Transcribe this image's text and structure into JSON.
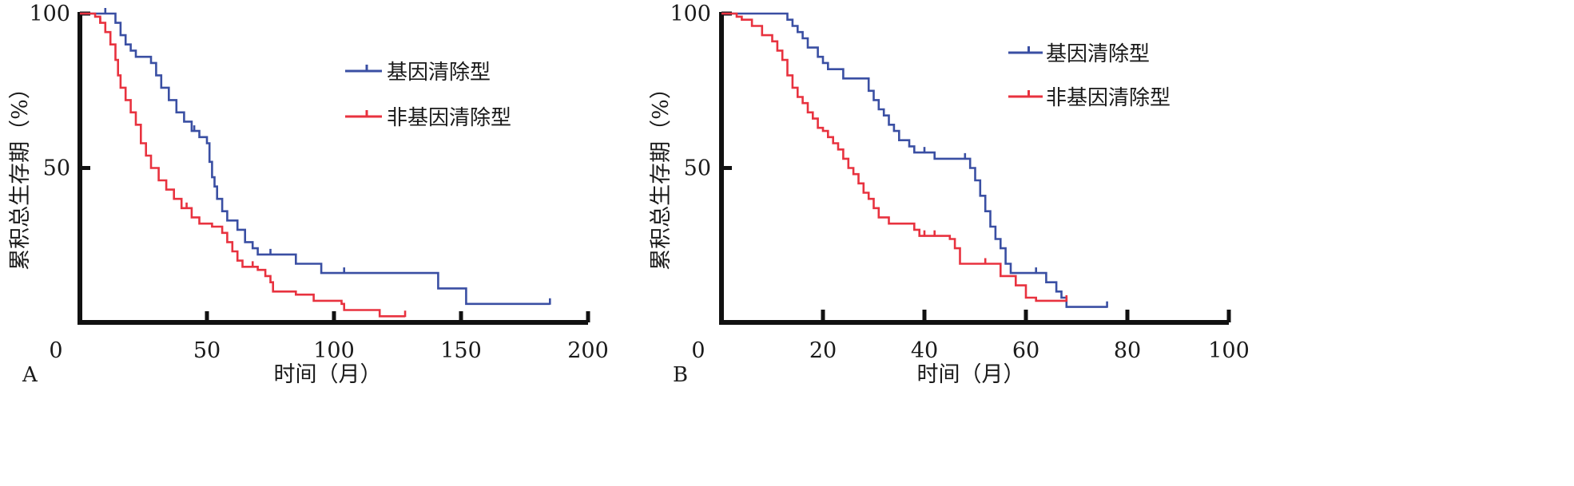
{
  "chart_data": [
    {
      "type": "line",
      "panel_label": "A",
      "xlabel": "时间（月）",
      "ylabel": "累积总生存期（%）",
      "xlim": [
        0,
        200
      ],
      "ylim": [
        0,
        100
      ],
      "xticks": [
        0,
        50,
        100,
        150,
        200
      ],
      "yticks": [
        50,
        100
      ],
      "x_tick_labels": [
        "0",
        "50",
        "100",
        "150",
        "200"
      ],
      "y_tick_labels": [
        "50",
        "100"
      ],
      "grid": false,
      "legend": "top-right",
      "series": [
        {
          "name": "基因清除型",
          "color": "#3a4fa3",
          "points": [
            [
              0,
              100
            ],
            [
              12,
              100
            ],
            [
              14,
              97
            ],
            [
              16,
              93
            ],
            [
              18,
              90
            ],
            [
              20,
              88
            ],
            [
              22,
              86
            ],
            [
              28,
              84
            ],
            [
              30,
              80
            ],
            [
              32,
              76
            ],
            [
              35,
              72
            ],
            [
              38,
              68
            ],
            [
              41,
              65
            ],
            [
              44,
              62
            ],
            [
              47,
              60
            ],
            [
              50,
              58
            ],
            [
              51,
              52
            ],
            [
              52,
              47
            ],
            [
              53,
              44
            ],
            [
              54,
              40
            ],
            [
              56,
              36
            ],
            [
              58,
              33
            ],
            [
              62,
              30
            ],
            [
              65,
              26
            ],
            [
              68,
              24
            ],
            [
              70,
              22
            ],
            [
              85,
              19
            ],
            [
              95,
              16
            ],
            [
              140,
              16
            ],
            [
              141,
              11
            ],
            [
              150,
              11
            ],
            [
              152,
              6
            ],
            [
              185,
              6
            ]
          ],
          "censored_x": [
            10,
            45,
            75,
            104,
            185
          ]
        },
        {
          "name": "非基因清除型",
          "color": "#e8323f",
          "points": [
            [
              0,
              100
            ],
            [
              6,
              99
            ],
            [
              8,
              97
            ],
            [
              10,
              94
            ],
            [
              12,
              90
            ],
            [
              14,
              85
            ],
            [
              15,
              80
            ],
            [
              16,
              76
            ],
            [
              18,
              72
            ],
            [
              20,
              68
            ],
            [
              22,
              64
            ],
            [
              24,
              58
            ],
            [
              26,
              54
            ],
            [
              28,
              50
            ],
            [
              31,
              46
            ],
            [
              34,
              43
            ],
            [
              37,
              40
            ],
            [
              40,
              37
            ],
            [
              44,
              34
            ],
            [
              47,
              32
            ],
            [
              52,
              31
            ],
            [
              56,
              29
            ],
            [
              58,
              26
            ],
            [
              60,
              23
            ],
            [
              62,
              20
            ],
            [
              64,
              18
            ],
            [
              70,
              17
            ],
            [
              73,
              15
            ],
            [
              75,
              13
            ],
            [
              76,
              10
            ],
            [
              85,
              9
            ],
            [
              92,
              7
            ],
            [
              103,
              6
            ],
            [
              104,
              4
            ],
            [
              117,
              4
            ],
            [
              118,
              2
            ],
            [
              128,
              2
            ]
          ],
          "censored_x": [
            8,
            42,
            68,
            128
          ]
        }
      ]
    },
    {
      "type": "line",
      "panel_label": "B",
      "xlabel": "时间（月）",
      "ylabel": "累积总生存期（%）",
      "xlim": [
        0,
        100
      ],
      "ylim": [
        0,
        100
      ],
      "xticks": [
        0,
        20,
        40,
        60,
        80,
        100
      ],
      "yticks": [
        50,
        100
      ],
      "x_tick_labels": [
        "0",
        "20",
        "40",
        "60",
        "80",
        "100"
      ],
      "y_tick_labels": [
        "50",
        "100"
      ],
      "grid": false,
      "legend": "top-right",
      "series": [
        {
          "name": "基因清除型",
          "color": "#3a4fa3",
          "points": [
            [
              0,
              100
            ],
            [
              12,
              100
            ],
            [
              13,
              98
            ],
            [
              14,
              96
            ],
            [
              15,
              94
            ],
            [
              16,
              92
            ],
            [
              17,
              89
            ],
            [
              19,
              86
            ],
            [
              20,
              84
            ],
            [
              21,
              82
            ],
            [
              24,
              79
            ],
            [
              28,
              79
            ],
            [
              29,
              75
            ],
            [
              30,
              72
            ],
            [
              31,
              69
            ],
            [
              32,
              67
            ],
            [
              33,
              64
            ],
            [
              34,
              62
            ],
            [
              35,
              59
            ],
            [
              37,
              57
            ],
            [
              38,
              55
            ],
            [
              42,
              53
            ],
            [
              48,
              53
            ],
            [
              49,
              50
            ],
            [
              50,
              46
            ],
            [
              51,
              41
            ],
            [
              52,
              36
            ],
            [
              53,
              31
            ],
            [
              54,
              27
            ],
            [
              55,
              24
            ],
            [
              56,
              19
            ],
            [
              57,
              16
            ],
            [
              63,
              16
            ],
            [
              64,
              13
            ],
            [
              66,
              10
            ],
            [
              67,
              8
            ],
            [
              68,
              5
            ],
            [
              76,
              5
            ]
          ],
          "censored_x": [
            40,
            48,
            62,
            76
          ]
        },
        {
          "name": "非基因清除型",
          "color": "#e8323f",
          "points": [
            [
              0,
              100
            ],
            [
              2,
              100
            ],
            [
              3,
              99
            ],
            [
              4,
              98
            ],
            [
              6,
              96
            ],
            [
              8,
              93
            ],
            [
              10,
              91
            ],
            [
              11,
              88
            ],
            [
              12,
              85
            ],
            [
              13,
              80
            ],
            [
              14,
              76
            ],
            [
              15,
              73
            ],
            [
              16,
              71
            ],
            [
              17,
              68
            ],
            [
              18,
              66
            ],
            [
              19,
              63
            ],
            [
              20,
              62
            ],
            [
              21,
              60
            ],
            [
              22,
              58
            ],
            [
              23,
              56
            ],
            [
              24,
              53
            ],
            [
              25,
              50
            ],
            [
              26,
              48
            ],
            [
              27,
              45
            ],
            [
              28,
              42
            ],
            [
              29,
              40
            ],
            [
              30,
              37
            ],
            [
              31,
              34
            ],
            [
              33,
              32
            ],
            [
              37,
              32
            ],
            [
              38,
              30
            ],
            [
              39,
              28
            ],
            [
              45,
              27
            ],
            [
              46,
              24
            ],
            [
              47,
              19
            ],
            [
              54,
              19
            ],
            [
              55,
              15
            ],
            [
              58,
              12
            ],
            [
              60,
              8
            ],
            [
              62,
              7
            ],
            [
              68,
              7
            ]
          ],
          "censored_x": [
            40,
            42,
            52,
            68
          ]
        }
      ]
    }
  ]
}
